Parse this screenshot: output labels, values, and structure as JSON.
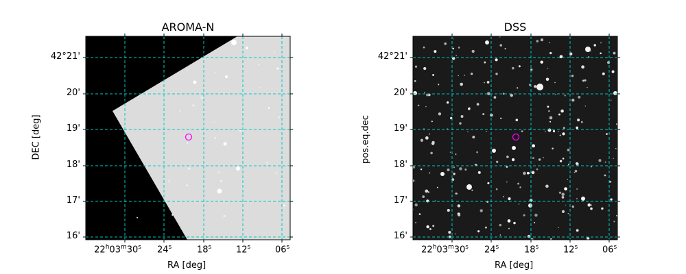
{
  "panels": [
    {
      "title": "AROMA-N",
      "ylabel": "DEC [deg]",
      "xlabel": "RA [deg]",
      "y_ticks": [
        "42°21'",
        "20'",
        "19'",
        "18'",
        "17'",
        "16'"
      ],
      "x_ticks": [
        {
          "h": "22",
          "m": "03",
          "s": "30",
          "full": true
        },
        {
          "s": "24"
        },
        {
          "s": "18"
        },
        {
          "s": "12"
        },
        {
          "s": "06"
        }
      ]
    },
    {
      "title": "DSS",
      "ylabel": "pos.eq.dec",
      "xlabel": "RA [deg]",
      "y_ticks": [
        "42°21'",
        "20'",
        "19'",
        "18'",
        "17'",
        "16'"
      ],
      "x_ticks": [
        {
          "h": "22",
          "m": "03",
          "s": "30",
          "full": true
        },
        {
          "s": "24"
        },
        {
          "s": "18"
        },
        {
          "s": "12"
        },
        {
          "s": "06"
        }
      ]
    }
  ],
  "colors": {
    "grid": "#00c8c8",
    "marker": "#ff00ff",
    "aroma_field": "#dcdcdc",
    "dss_bg": "#1a1a1a"
  }
}
